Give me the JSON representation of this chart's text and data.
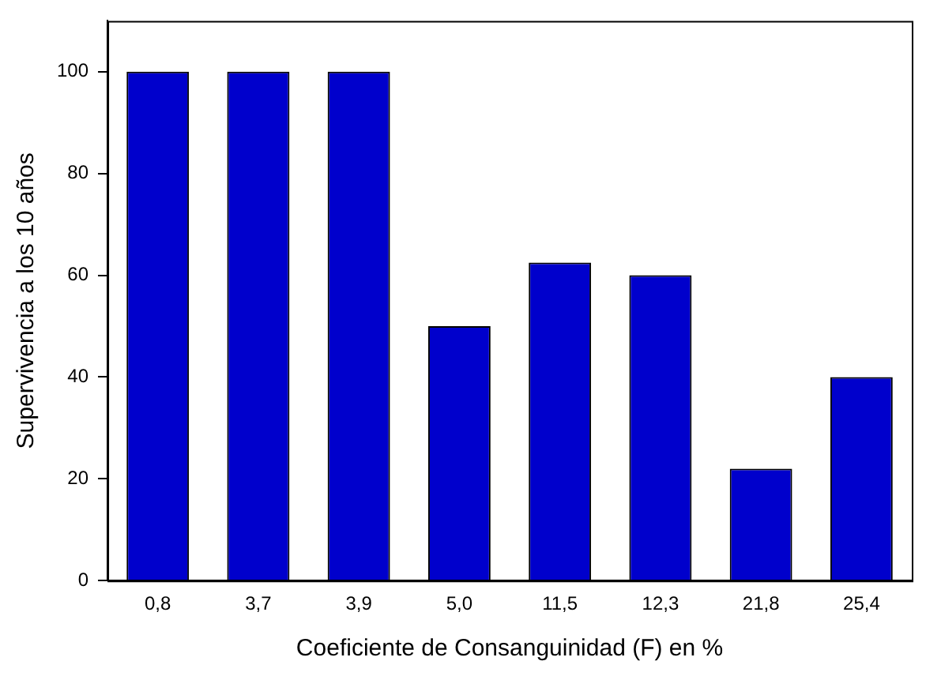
{
  "chart_data": {
    "type": "bar",
    "xlabel": "Coeficiente de Consanguinidad (F) en %",
    "ylabel": "Supervivencia a los 10 años",
    "categories": [
      "0,8",
      "3,7",
      "3,9",
      "5,0",
      "11,5",
      "12,3",
      "21,8",
      "25,4"
    ],
    "values": [
      100,
      100,
      100,
      50,
      62.5,
      60,
      22,
      40
    ],
    "color": "#0000cc",
    "ylim": [
      0,
      110
    ],
    "yticks": [
      0,
      20,
      40,
      60,
      80,
      100
    ],
    "grid": false
  }
}
